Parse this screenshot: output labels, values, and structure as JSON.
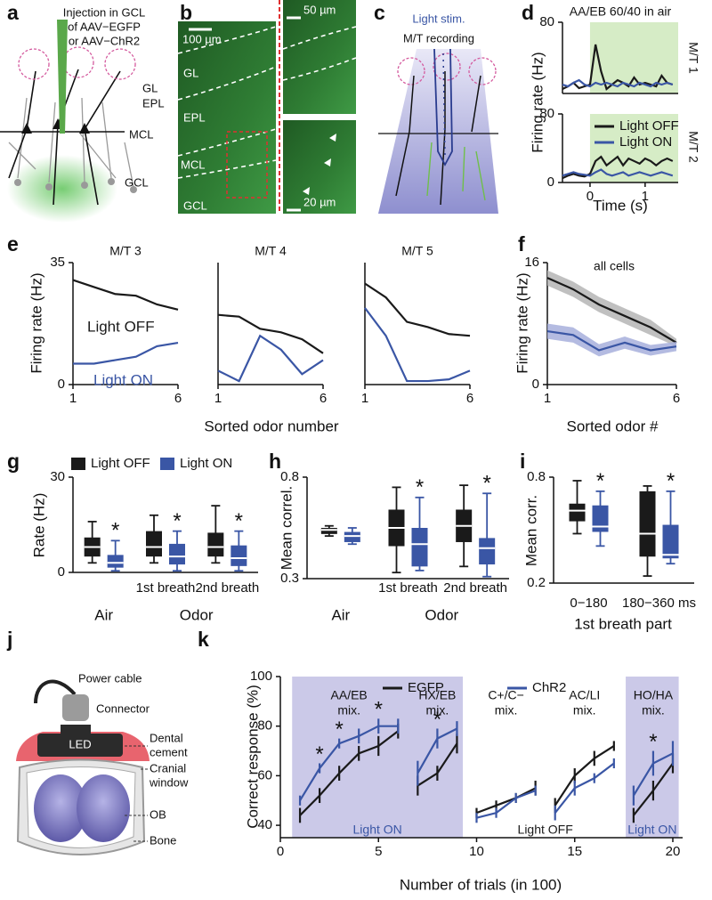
{
  "figure": {
    "panel_labels": [
      "a",
      "b",
      "c",
      "d",
      "e",
      "f",
      "g",
      "h",
      "i",
      "j",
      "k"
    ]
  },
  "diagram_a": {
    "injection": [
      "Injection in GCL",
      "of AAV−EGFP",
      "or AAV−ChR2"
    ],
    "layers": [
      "GL",
      "EPL",
      "MCL",
      "GCL"
    ]
  },
  "micrograph_b": {
    "scale_main": "100 µm",
    "layers": [
      "GL",
      "EPL",
      "MCL",
      "GCL"
    ],
    "scale_top": "50 µm",
    "scale_bottom": "20 µm"
  },
  "diagram_c": {
    "stim": "Light stim.",
    "recording": "M/T recording"
  },
  "diagram_j": {
    "power_cable": "Power cable",
    "connector": "Connector",
    "dental_cement": [
      "Dental",
      "cement"
    ],
    "led": "LED",
    "cranial_window": [
      "Cranial",
      "window"
    ],
    "ob": "OB",
    "bone": "Bone"
  },
  "chart_data": [
    {
      "type": "line",
      "title": "AA/EB 60/40 in air",
      "side_label": "M/T 1",
      "ylabel": "Firing rate (Hz)",
      "x": [
        -0.5,
        -0.4,
        -0.3,
        -0.2,
        -0.1,
        0,
        0.1,
        0.2,
        0.3,
        0.4,
        0.5,
        0.6,
        0.7,
        0.8,
        0.9,
        1,
        1.1,
        1.2,
        1.3,
        1.4,
        1.5
      ],
      "xlim": [
        -0.5,
        1.6
      ],
      "ylim": [
        0,
        80
      ],
      "yticks": [
        80
      ],
      "stim_span": [
        0,
        1.6
      ],
      "stim_color": "#d6ecc6",
      "series": [
        {
          "color": "#1a1a1a",
          "values": [
            5,
            8,
            12,
            6,
            8,
            10,
            55,
            25,
            5,
            10,
            15,
            12,
            8,
            18,
            10,
            12,
            10,
            8,
            20,
            12,
            10
          ]
        },
        {
          "color": "#3a56a5",
          "values": [
            10,
            8,
            12,
            15,
            10,
            8,
            12,
            10,
            12,
            10,
            8,
            12,
            10,
            8,
            12,
            10,
            8,
            12,
            10,
            12,
            10
          ]
        }
      ]
    },
    {
      "type": "line",
      "side_label": "M/T 2",
      "xlabel": "Time (s)",
      "x": [
        -0.5,
        -0.4,
        -0.3,
        -0.2,
        -0.1,
        0,
        0.1,
        0.2,
        0.3,
        0.4,
        0.5,
        0.6,
        0.7,
        0.8,
        0.9,
        1,
        1.1,
        1.2,
        1.3,
        1.4,
        1.5
      ],
      "xlim": [
        -0.5,
        1.6
      ],
      "xticks": [
        0,
        1
      ],
      "ylim": [
        0,
        80
      ],
      "yticks": [
        0,
        80
      ],
      "stim_span": [
        0,
        1.6
      ],
      "stim_color": "#d6ecc6",
      "series": [
        {
          "name": "Light OFF",
          "color": "#1a1a1a",
          "values": [
            5,
            8,
            10,
            8,
            7,
            10,
            25,
            30,
            20,
            25,
            30,
            20,
            28,
            25,
            22,
            28,
            25,
            20,
            25,
            28,
            25
          ]
        },
        {
          "name": "Light ON",
          "color": "#3a56a5",
          "values": [
            8,
            10,
            12,
            10,
            9,
            8,
            12,
            15,
            10,
            8,
            10,
            12,
            8,
            10,
            12,
            10,
            8,
            10,
            12,
            10,
            8
          ]
        }
      ]
    },
    {
      "type": "line",
      "title": "M/T 3",
      "ylabel": "Firing rate (Hz)",
      "x": [
        1,
        2,
        3,
        4,
        5,
        6
      ],
      "xlim": [
        1,
        6
      ],
      "xticks": [
        1,
        6
      ],
      "ylim": [
        0,
        35
      ],
      "yticks": [
        0,
        35
      ],
      "annotations": [
        {
          "text": "Light OFF",
          "color": "#1a1a1a"
        },
        {
          "text": "Light ON",
          "color": "#3a56a5"
        }
      ],
      "series": [
        {
          "color": "#1a1a1a",
          "values": [
            30,
            28,
            26,
            25.5,
            23,
            21.5
          ]
        },
        {
          "color": "#3a56a5",
          "values": [
            6,
            6,
            7,
            8,
            11,
            12
          ]
        }
      ]
    },
    {
      "type": "line",
      "title": "M/T 4",
      "xlabel": "Sorted odor number",
      "x": [
        1,
        2,
        3,
        4,
        5,
        6
      ],
      "xlim": [
        1,
        6
      ],
      "xticks": [
        1,
        6
      ],
      "ylim": [
        0,
        35
      ],
      "series": [
        {
          "color": "#1a1a1a",
          "values": [
            20,
            19.5,
            16,
            15,
            13,
            9
          ]
        },
        {
          "color": "#3a56a5",
          "values": [
            4,
            1,
            14,
            10,
            3,
            7
          ]
        }
      ]
    },
    {
      "type": "line",
      "title": "M/T 5",
      "x": [
        1,
        2,
        3,
        4,
        5,
        6
      ],
      "xlim": [
        1,
        6
      ],
      "xticks": [
        1,
        6
      ],
      "ylim": [
        0,
        35
      ],
      "series": [
        {
          "color": "#1a1a1a",
          "values": [
            29,
            25,
            18,
            16.5,
            14.5,
            14
          ]
        },
        {
          "color": "#3a56a5",
          "values": [
            22,
            14,
            1,
            1,
            1.5,
            4
          ]
        }
      ]
    },
    {
      "type": "line",
      "title": "all cells",
      "ylabel": "Firing rate (Hz)",
      "xlabel": "Sorted odor #",
      "x": [
        1,
        2,
        3,
        4,
        5,
        6
      ],
      "xlim": [
        1,
        6
      ],
      "xticks": [
        1,
        6
      ],
      "ylim": [
        0,
        16
      ],
      "yticks": [
        0,
        16
      ],
      "series": [
        {
          "color": "#1a1a1a",
          "band_color": "#b5b5b5",
          "values": [
            14,
            12.5,
            10.5,
            9,
            7.5,
            5.5
          ],
          "lower": [
            13,
            11.5,
            9.5,
            8,
            6.5,
            5
          ],
          "upper": [
            15,
            13.5,
            11.5,
            10,
            8.5,
            6
          ]
        },
        {
          "color": "#3a56a5",
          "band_color": "#a7afdc",
          "values": [
            7,
            6.5,
            4.5,
            5.5,
            4.5,
            5
          ],
          "lower": [
            6,
            5.5,
            3.7,
            4.7,
            3.8,
            4.4
          ],
          "upper": [
            8,
            7.5,
            5.3,
            6.3,
            5.2,
            5.6
          ]
        }
      ]
    },
    {
      "type": "box",
      "ylabel": "Rate (Hz)",
      "categories": [
        "Air",
        "1st breath",
        "2nd breath"
      ],
      "group_label": "Odor",
      "ylim": [
        0,
        30
      ],
      "yticks": [
        0,
        30
      ],
      "significance": [
        "*",
        "*",
        "*"
      ],
      "series": [
        {
          "name": "Light OFF",
          "color": "#1a1a1a",
          "whisker_low": [
            3,
            3,
            3
          ],
          "q1": [
            5,
            5,
            5
          ],
          "median": [
            8,
            8,
            8
          ],
          "q3": [
            11,
            13,
            12.5
          ],
          "whisker_high": [
            16,
            18,
            21
          ]
        },
        {
          "name": "Light ON",
          "color": "#3a56a5",
          "whisker_low": [
            0.5,
            0.5,
            0.5
          ],
          "q1": [
            1.5,
            2.5,
            2
          ],
          "median": [
            3,
            5,
            4.5
          ],
          "q3": [
            5.5,
            9,
            8.5
          ],
          "whisker_high": [
            10,
            13,
            13
          ]
        }
      ]
    },
    {
      "type": "box",
      "ylabel": "Mean correl.",
      "categories": [
        "Air",
        "1st breath",
        "2nd breath"
      ],
      "group_label": "Odor",
      "ylim": [
        0.3,
        0.8
      ],
      "yticks": [
        0.3,
        0.8
      ],
      "significance": [
        null,
        "*",
        "*"
      ],
      "series": [
        {
          "color": "#1a1a1a",
          "whisker_low": [
            0.51,
            0.33,
            0.36
          ],
          "q1": [
            0.52,
            0.46,
            0.48
          ],
          "median": [
            0.54,
            0.55,
            0.56
          ],
          "q3": [
            0.55,
            0.64,
            0.64
          ],
          "whisker_high": [
            0.56,
            0.75,
            0.76
          ]
        },
        {
          "color": "#3a56a5",
          "whisker_low": [
            0.47,
            0.34,
            0.31
          ],
          "q1": [
            0.48,
            0.36,
            0.37
          ],
          "median": [
            0.51,
            0.47,
            0.45
          ],
          "q3": [
            0.53,
            0.55,
            0.5
          ],
          "whisker_high": [
            0.55,
            0.7,
            0.72
          ]
        }
      ]
    },
    {
      "type": "box",
      "ylabel": "Mean corr.",
      "xlabel": "1st breath part",
      "categories": [
        "0−180",
        "180−360 ms"
      ],
      "ylim": [
        0.2,
        0.8
      ],
      "yticks": [
        0.2,
        0.8
      ],
      "significance": [
        "*",
        "*"
      ],
      "series": [
        {
          "color": "#1a1a1a",
          "whisker_low": [
            0.48,
            0.24
          ],
          "q1": [
            0.55,
            0.35
          ],
          "median": [
            0.61,
            0.48
          ],
          "q3": [
            0.65,
            0.72
          ],
          "whisker_high": [
            0.78,
            0.75
          ]
        },
        {
          "color": "#3a56a5",
          "whisker_low": [
            0.41,
            0.31
          ],
          "q1": [
            0.49,
            0.34
          ],
          "median": [
            0.52,
            0.36
          ],
          "q3": [
            0.64,
            0.53
          ],
          "whisker_high": [
            0.72,
            0.72
          ]
        }
      ]
    },
    {
      "type": "line",
      "ylabel": "Correct response (%)",
      "xlabel": "Number of trials (in 100)",
      "x": [
        1,
        2,
        3,
        4,
        5,
        6,
        null,
        7,
        8,
        9,
        null,
        10,
        11,
        12,
        13,
        null,
        14,
        15,
        16,
        17,
        null,
        18,
        19,
        20
      ],
      "xlim": [
        0,
        20.5
      ],
      "xticks": [
        0,
        5,
        10,
        15,
        20
      ],
      "ylim": [
        35,
        100
      ],
      "yticks": [
        40,
        60,
        80,
        100
      ],
      "region_labels": [
        "Light ON",
        "Light OFF",
        "Light ON"
      ],
      "region_shaded": [
        true,
        false,
        true
      ],
      "region_label_colors": [
        "#3a56a5",
        "#1a1a1a",
        "#3a56a5"
      ],
      "region_color": "#cbc9e8",
      "groups": [
        [
          "AA/EB",
          "mix."
        ],
        [
          "HX/EB",
          "mix."
        ],
        [
          "C+/C−",
          "mix."
        ],
        [
          "AC/LI",
          "mix."
        ],
        [
          "HO/HA",
          "mix."
        ]
      ],
      "significant_x": [
        2,
        3,
        5,
        8,
        19
      ],
      "significance_label": "*",
      "series": [
        {
          "name": "EGFP",
          "color": "#1a1a1a",
          "values": [
            44,
            52,
            61,
            69,
            72,
            78,
            null,
            56,
            61,
            73,
            null,
            45,
            48,
            51,
            55,
            null,
            48,
            60,
            67,
            72,
            null,
            44,
            54,
            65
          ],
          "errors": [
            3,
            3,
            3,
            3,
            4,
            3,
            null,
            4,
            3,
            4,
            null,
            2,
            2,
            2,
            3,
            null,
            3,
            3,
            3,
            2,
            null,
            3,
            4,
            4
          ]
        },
        {
          "name": "ChR2",
          "color": "#3a56a5",
          "values": [
            50,
            63,
            73,
            76,
            80,
            80,
            null,
            61,
            75,
            79,
            null,
            43,
            45,
            51,
            54,
            null,
            45,
            55,
            59,
            65,
            null,
            52,
            65,
            69
          ],
          "errors": [
            2,
            2,
            2,
            3,
            3,
            3,
            null,
            5,
            4,
            3,
            null,
            2,
            2,
            2,
            2,
            null,
            3,
            3,
            2,
            2,
            null,
            4,
            5,
            5
          ]
        }
      ]
    }
  ]
}
